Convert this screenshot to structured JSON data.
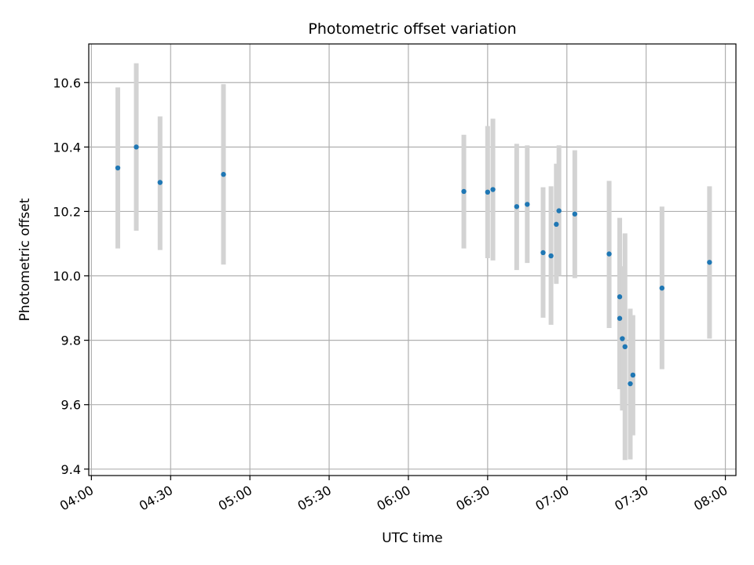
{
  "chart_data": {
    "type": "scatter",
    "title": "Photometric offset variation",
    "xlabel": "UTC time",
    "ylabel": "Photometric offset",
    "x_ticks": [
      "04:00",
      "04:30",
      "05:00",
      "05:30",
      "06:00",
      "06:30",
      "07:00",
      "07:30",
      "08:00"
    ],
    "y_ticks": [
      "9.4",
      "9.6",
      "9.8",
      "10.0",
      "10.2",
      "10.4",
      "10.6"
    ],
    "xlim": [
      "03:59",
      "08:04"
    ],
    "ylim": [
      9.38,
      10.72
    ],
    "grid": true,
    "marker_color": "#1f77b4",
    "errorbar_color": "#d3d3d3",
    "points": [
      {
        "x": "04:10",
        "y": 10.335,
        "low": 10.085,
        "high": 10.585
      },
      {
        "x": "04:17",
        "y": 10.4,
        "low": 10.14,
        "high": 10.66
      },
      {
        "x": "04:26",
        "y": 10.29,
        "low": 10.08,
        "high": 10.495
      },
      {
        "x": "04:50",
        "y": 10.315,
        "low": 10.035,
        "high": 10.595
      },
      {
        "x": "06:21",
        "y": 10.262,
        "low": 10.085,
        "high": 10.438
      },
      {
        "x": "06:30",
        "y": 10.26,
        "low": 10.055,
        "high": 10.465
      },
      {
        "x": "06:32",
        "y": 10.268,
        "low": 10.048,
        "high": 10.488
      },
      {
        "x": "06:41",
        "y": 10.215,
        "low": 10.018,
        "high": 10.41
      },
      {
        "x": "06:45",
        "y": 10.222,
        "low": 10.04,
        "high": 10.405
      },
      {
        "x": "06:51",
        "y": 10.072,
        "low": 9.87,
        "high": 10.275
      },
      {
        "x": "06:54",
        "y": 10.062,
        "low": 9.848,
        "high": 10.278
      },
      {
        "x": "06:56",
        "y": 10.16,
        "low": 9.975,
        "high": 10.348
      },
      {
        "x": "06:57",
        "y": 10.202,
        "low": 10.0,
        "high": 10.405
      },
      {
        "x": "07:03",
        "y": 10.192,
        "low": 9.993,
        "high": 10.39
      },
      {
        "x": "07:16",
        "y": 10.068,
        "low": 9.838,
        "high": 10.295
      },
      {
        "x": "07:20",
        "y": 9.868,
        "low": 9.648,
        "high": 10.085
      },
      {
        "x": "07:20",
        "y": 9.935,
        "low": 9.708,
        "high": 10.18
      },
      {
        "x": "07:21",
        "y": 9.805,
        "low": 9.582,
        "high": 10.03
      },
      {
        "x": "07:22",
        "y": 9.78,
        "low": 9.428,
        "high": 10.132
      },
      {
        "x": "07:24",
        "y": 9.665,
        "low": 9.43,
        "high": 9.898
      },
      {
        "x": "07:25",
        "y": 9.692,
        "low": 9.505,
        "high": 9.878
      },
      {
        "x": "07:36",
        "y": 9.962,
        "low": 9.71,
        "high": 10.215
      },
      {
        "x": "07:54",
        "y": 10.042,
        "low": 9.805,
        "high": 10.278
      }
    ]
  }
}
